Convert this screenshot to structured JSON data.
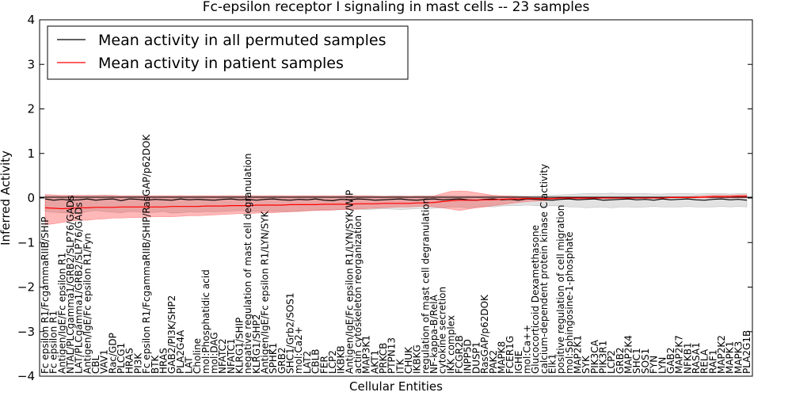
{
  "chart_data": {
    "type": "line",
    "title": "Fc-epsilon receptor I signaling in mast cells -- 23 samples",
    "xlabel": "Cellular Entities",
    "ylabel": "Inferred Activity",
    "ylim": [
      -4,
      4
    ],
    "yticks": [
      -4,
      -3,
      -2,
      -1,
      0,
      1,
      2,
      3,
      4
    ],
    "legend": {
      "position": "top-left",
      "entries": [
        {
          "label": "Mean activity in all permuted samples",
          "color": "#000000"
        },
        {
          "label": "Mean activity in patient samples",
          "color": "#ff0000"
        }
      ]
    },
    "categories": [
      "Fc epsilon R1/FcgammaRIIB/SHIP",
      "Fc epsilon R1",
      "Antigen/IgE/Fc epsilon R1",
      "NTAL/PLCgamma1/GRB2/SLP76/GADs",
      "LAT/PLCgamma1/GRB2/SLP76/GADs",
      "Antigen/IgE/Fc epsilon R1/Fyn",
      "CBL",
      "VAV1",
      "Rac/GDP",
      "PLCG1",
      "HRAS",
      "PI3K",
      "Fc epsilon R1/FcgammaRIIB/SHIP/RasGAP/p62DOK",
      "BTK",
      "HRAS",
      "GAB2/PI3K/SHP2",
      "PLA2G4A",
      "LAT",
      "Choline",
      "mol:Phosphatidic acid",
      "mol:DAG",
      "NFATC2",
      "NFATC1",
      "KLRG1/SHIP",
      "negative regulation of mast cell degranulation",
      "KLRG1/SHP2",
      "Antigen/IgE/Fc epsilon R1/LYN/SYK",
      "SPHK1",
      "GRB2",
      "SHC1/Grb2/SOS1",
      "mol:Ca2+",
      "LAT2",
      "CBLB",
      "FER",
      "LCP2",
      "IKBKB",
      "Antigen/IgE/Fc epsilon R1/LYN/SYK/WIP",
      "actin cytoskeleton reorganization",
      "MAP3K1",
      "AKT1",
      "PRKCB",
      "PTPN13",
      "ITK",
      "CHUK",
      "IKBKG",
      "regulation of mast cell degranulation",
      "NF-kappa-B/RelA",
      "cytokine secretion",
      "IKK complex",
      "FCGR2B",
      "INPP5D",
      "DUSP1",
      "RasGAP/p62DOK",
      "PAK2",
      "MAPK8",
      "FCER1G",
      "IGHE",
      "mol:Ca++",
      "Glucocorticoid Dexamethasone",
      "calcium-dependent protein kinase C activity",
      "Elk1",
      "positive regulation of cell migration",
      "mol:Sphingosine-1-phosphate",
      "MAP2K1",
      "SYK",
      "PIK3CA",
      "PIK3R1",
      "LCP2",
      "GRB2",
      "MAP2K4",
      "SHC1",
      "SOS1",
      "FYN",
      "LYN",
      "GAB2",
      "MAP2K7",
      "NFKB1",
      "RASA1",
      "RELA",
      "RAF1",
      "MAP2K2",
      "MAPK1",
      "MAPK3",
      "PLA2G1B"
    ],
    "series": [
      {
        "name": "Mean activity in all permuted samples",
        "color": "#000000",
        "values": [
          -0.02,
          -0.05,
          -0.03,
          -0.05,
          -0.04,
          -0.02,
          -0.05,
          -0.03,
          -0.02,
          -0.06,
          -0.02,
          -0.03,
          -0.05,
          -0.03,
          -0.04,
          -0.05,
          -0.02,
          -0.04,
          -0.03,
          -0.04,
          -0.05,
          -0.03,
          -0.02,
          -0.04,
          -0.03,
          -0.05,
          -0.03,
          -0.02,
          -0.04,
          -0.05,
          -0.03,
          -0.04,
          -0.02,
          -0.05,
          -0.06,
          -0.03,
          -0.04,
          -0.02,
          -0.03,
          -0.05,
          -0.04,
          -0.03,
          -0.02,
          -0.04,
          -0.05,
          -0.03,
          -0.02,
          -0.04,
          -0.03,
          -0.02,
          -0.04,
          -0.05,
          -0.03,
          -0.02,
          -0.04,
          -0.03,
          -0.05,
          -0.02,
          -0.03,
          -0.04,
          -0.05,
          -0.03,
          -0.02,
          -0.04,
          -0.03,
          -0.02,
          -0.05,
          -0.04,
          -0.03,
          -0.02,
          -0.04,
          -0.03,
          -0.05,
          -0.02,
          -0.04,
          -0.03,
          -0.02,
          -0.04,
          -0.05,
          -0.03,
          -0.02,
          -0.04,
          -0.03,
          -0.05
        ],
        "band_low": [
          -0.3,
          -0.32,
          -0.33,
          -0.34,
          -0.35,
          -0.3,
          -0.28,
          -0.3,
          -0.32,
          -0.33,
          -0.3,
          -0.31,
          -0.33,
          -0.32,
          -0.3,
          -0.34,
          -0.33,
          -0.31,
          -0.32,
          -0.3,
          -0.31,
          -0.3,
          -0.29,
          -0.28,
          -0.3,
          -0.3,
          -0.28,
          -0.3,
          -0.3,
          -0.3,
          -0.3,
          -0.28,
          -0.27,
          -0.26,
          -0.27,
          -0.26,
          -0.25,
          -0.25,
          -0.26,
          -0.25,
          -0.24,
          -0.25,
          -0.26,
          -0.25,
          -0.24,
          -0.24,
          -0.23,
          -0.22,
          -0.2,
          -0.2,
          -0.22,
          -0.2,
          -0.19,
          -0.2,
          -0.18,
          -0.17,
          -0.17,
          -0.16,
          -0.17,
          -0.18,
          -0.17,
          -0.18,
          -0.2,
          -0.2,
          -0.22,
          -0.21,
          -0.2,
          -0.22,
          -0.2,
          -0.2,
          -0.21,
          -0.2,
          -0.19,
          -0.2,
          -0.2,
          -0.2,
          -0.19,
          -0.2,
          -0.2,
          -0.2,
          -0.19,
          -0.2,
          -0.19,
          -0.2
        ],
        "band_high": [
          0.05,
          0.05,
          0.04,
          0.05,
          0.04,
          0.05,
          0.05,
          0.06,
          0.05,
          0.04,
          0.05,
          0.05,
          0.04,
          0.05,
          0.05,
          0.04,
          0.05,
          0.04,
          0.05,
          0.05,
          0.04,
          0.05,
          0.05,
          0.04,
          0.05,
          0.05,
          0.04,
          0.05,
          0.05,
          0.04,
          0.05,
          0.05,
          0.04,
          0.05,
          0.04,
          0.05,
          0.05,
          0.04,
          0.05,
          0.05,
          0.04,
          0.05,
          0.05,
          0.04,
          0.05,
          0.05,
          0.04,
          0.05,
          0.05,
          0.04,
          0.05,
          0.04,
          0.05,
          0.05,
          0.04,
          0.05,
          0.05,
          0.04,
          0.05,
          0.05,
          0.06,
          0.07,
          0.08,
          0.09,
          0.1,
          0.1,
          0.1,
          0.11,
          0.1,
          0.1,
          0.1,
          0.1,
          0.09,
          0.09,
          0.1,
          0.1,
          0.1,
          0.09,
          0.1,
          0.1,
          0.1,
          0.09,
          0.1,
          0.1
        ]
      },
      {
        "name": "Mean activity in patient samples",
        "color": "#ff0000",
        "values": [
          -0.22,
          -0.23,
          -0.24,
          -0.23,
          -0.22,
          -0.22,
          -0.21,
          -0.21,
          -0.21,
          -0.2,
          -0.2,
          -0.2,
          -0.2,
          -0.2,
          -0.2,
          -0.19,
          -0.19,
          -0.19,
          -0.19,
          -0.18,
          -0.18,
          -0.18,
          -0.17,
          -0.17,
          -0.17,
          -0.16,
          -0.16,
          -0.16,
          -0.16,
          -0.15,
          -0.15,
          -0.15,
          -0.15,
          -0.14,
          -0.14,
          -0.14,
          -0.14,
          -0.13,
          -0.13,
          -0.13,
          -0.12,
          -0.12,
          -0.12,
          -0.12,
          -0.11,
          -0.11,
          -0.1,
          -0.08,
          -0.06,
          -0.05,
          -0.05,
          -0.05,
          -0.04,
          -0.04,
          -0.03,
          -0.02,
          -0.02,
          -0.01,
          -0.01,
          -0.01,
          -0.01,
          0.0,
          0.0,
          0.0,
          0.0,
          0.0,
          0.0,
          0.0,
          0.0,
          0.0,
          0.0,
          0.0,
          0.0,
          0.0,
          0.01,
          0.01,
          0.01,
          0.01,
          0.02,
          0.03,
          0.03,
          0.03,
          0.04,
          0.04
        ],
        "band_low": [
          -0.6,
          -0.58,
          -0.55,
          -0.52,
          -0.5,
          -0.5,
          -0.48,
          -0.47,
          -0.45,
          -0.45,
          -0.44,
          -0.44,
          -0.43,
          -0.42,
          -0.42,
          -0.42,
          -0.41,
          -0.4,
          -0.4,
          -0.39,
          -0.38,
          -0.37,
          -0.36,
          -0.35,
          -0.35,
          -0.34,
          -0.33,
          -0.33,
          -0.32,
          -0.31,
          -0.3,
          -0.29,
          -0.28,
          -0.28,
          -0.27,
          -0.26,
          -0.26,
          -0.25,
          -0.24,
          -0.23,
          -0.22,
          -0.21,
          -0.2,
          -0.2,
          -0.19,
          -0.18,
          -0.2,
          -0.22,
          -0.25,
          -0.28,
          -0.25,
          -0.22,
          -0.2,
          -0.17,
          -0.15,
          -0.12,
          -0.1,
          -0.08,
          -0.07,
          -0.06,
          -0.04,
          -0.03,
          -0.03,
          -0.02,
          -0.02,
          -0.01,
          -0.01,
          -0.01,
          0.0,
          0.0,
          0.0,
          0.0,
          0.0,
          0.0,
          0.0,
          0.0,
          0.0,
          0.0,
          0.0,
          0.0,
          0.0,
          0.0,
          0.0,
          0.0
        ],
        "band_high": [
          0.08,
          0.07,
          0.06,
          0.06,
          0.06,
          0.06,
          0.06,
          0.06,
          0.06,
          0.05,
          0.05,
          0.05,
          0.05,
          0.05,
          0.05,
          0.05,
          0.05,
          0.05,
          0.05,
          0.05,
          0.05,
          0.05,
          0.05,
          0.05,
          0.05,
          0.05,
          0.05,
          0.05,
          0.05,
          0.05,
          0.05,
          0.05,
          0.05,
          0.05,
          0.05,
          0.05,
          0.05,
          0.05,
          0.05,
          0.04,
          0.04,
          0.04,
          0.04,
          0.04,
          0.04,
          0.04,
          0.05,
          0.1,
          0.15,
          0.16,
          0.15,
          0.12,
          0.09,
          0.06,
          0.05,
          0.04,
          0.03,
          0.03,
          0.02,
          0.02,
          0.02,
          0.02,
          0.02,
          0.02,
          0.02,
          0.02,
          0.02,
          0.02,
          0.02,
          0.02,
          0.02,
          0.02,
          0.02,
          0.02,
          0.03,
          0.03,
          0.03,
          0.04,
          0.05,
          0.06,
          0.06,
          0.06,
          0.07,
          0.07
        ]
      }
    ]
  }
}
